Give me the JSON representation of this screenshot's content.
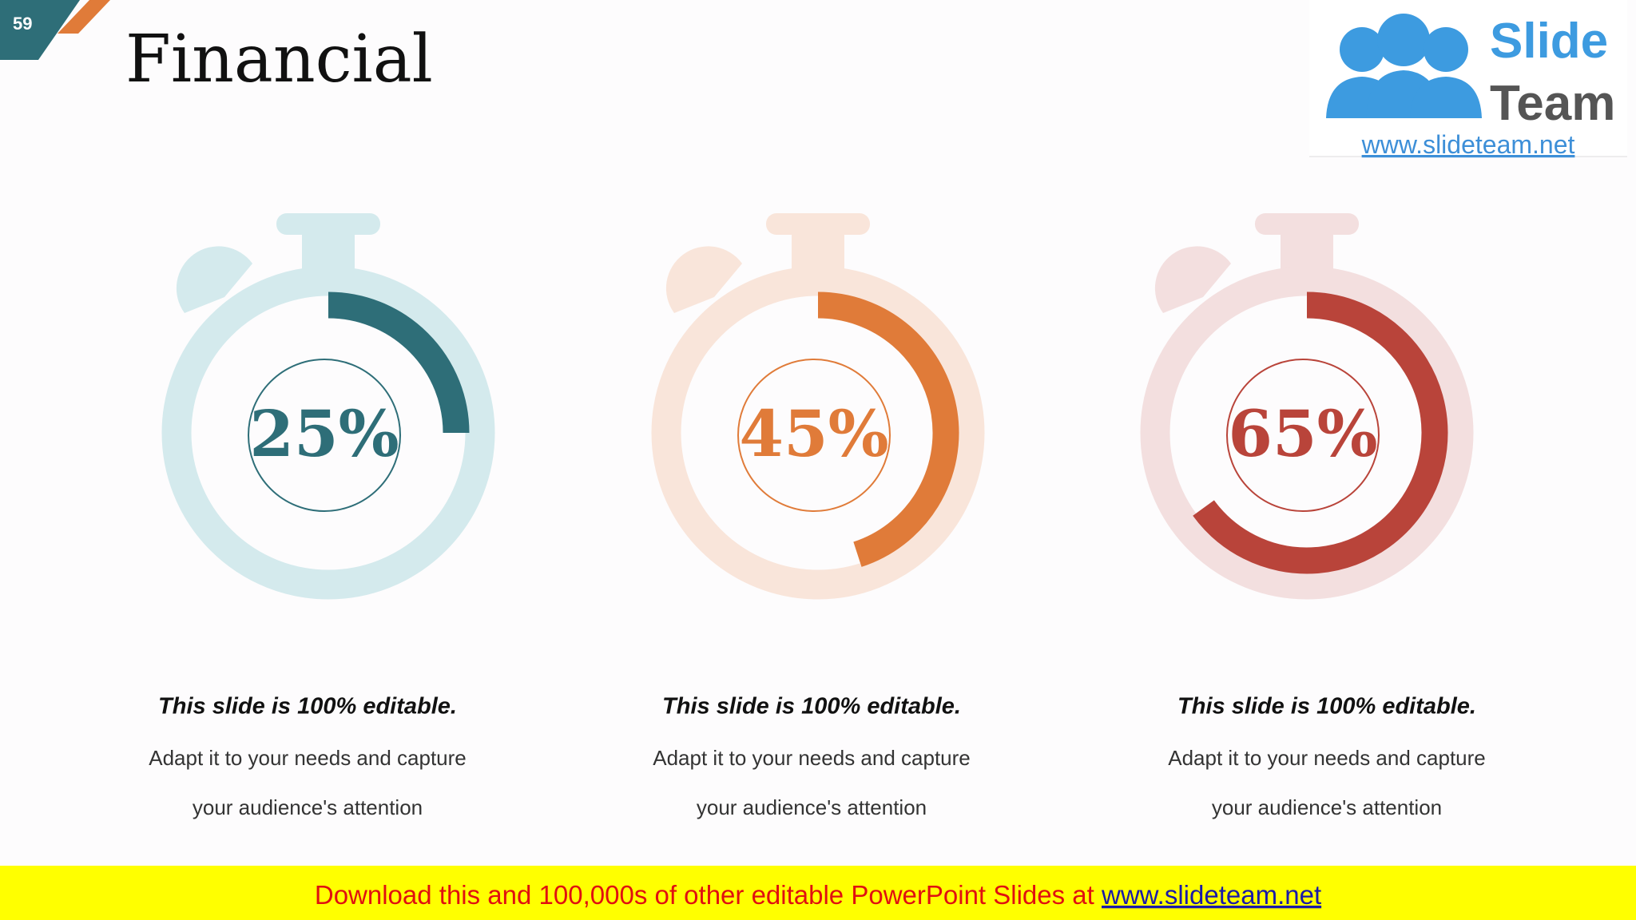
{
  "slide_number": "59",
  "title": "Financial",
  "logo": {
    "word1": "Slide",
    "word2": "Team",
    "url": "www.slideteam.net"
  },
  "chart_data": [
    {
      "type": "gauge",
      "values": [
        25
      ],
      "value_labels": [
        "25%"
      ],
      "color": "#2e6e78",
      "track_color": "#d4eaed",
      "ylim": [
        0,
        100
      ]
    },
    {
      "type": "gauge",
      "values": [
        45
      ],
      "value_labels": [
        "45%"
      ],
      "color": "#e07b39",
      "track_color": "#f9e5da",
      "ylim": [
        0,
        100
      ]
    },
    {
      "type": "gauge",
      "values": [
        65
      ],
      "value_labels": [
        "65%"
      ],
      "color": "#b9443a",
      "track_color": "#f3dfdf",
      "ylim": [
        0,
        100
      ]
    }
  ],
  "captions": [
    {
      "heading": "This slide is 100% editable.",
      "lines": [
        "Adapt it to your needs and capture",
        "your audience's attention"
      ]
    },
    {
      "heading": "This slide is 100% editable.",
      "lines": [
        "Adapt it to your needs and capture",
        "your audience's attention"
      ]
    },
    {
      "heading": "This slide is 100% editable.",
      "lines": [
        "Adapt it to your needs and capture",
        "your audience's attention"
      ]
    }
  ],
  "banner": {
    "text": "Download this and 100,000s of other editable PowerPoint Slides at ",
    "link": "www.slideteam.net"
  }
}
